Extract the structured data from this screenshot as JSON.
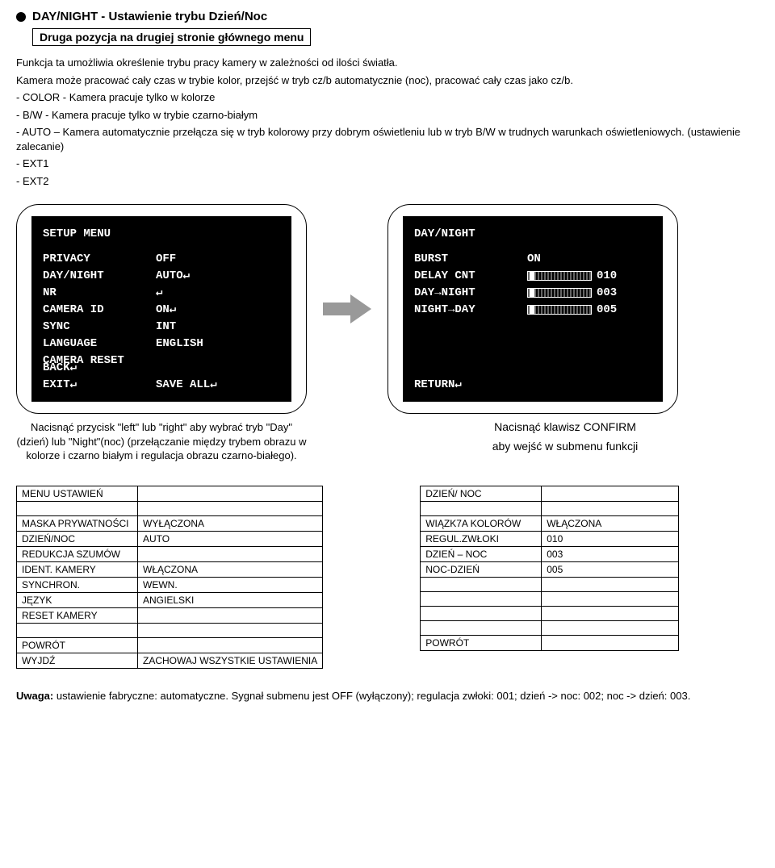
{
  "heading": "DAY/NIGHT - Ustawienie trybu Dzień/Noc",
  "subheading": "Druga pozycja na drugiej stronie głównego menu",
  "para1": "Funkcja ta umożliwia określenie trybu pracy kamery w zależności od ilości światła.",
  "para2": "Kamera może pracować cały czas w trybie kolor, przejść w tryb cz/b automatycznie (noc), pracować cały czas jako cz/b.",
  "opt_color": "- COLOR - Kamera pracuje tylko w kolorze",
  "opt_bw": "- B/W - Kamera pracuje tylko w trybie czarno-białym",
  "opt_auto_line1": "- AUTO – Kamera automatycznie przełącza się w tryb kolorowy przy dobrym oświetleniu lub w tryb B/W w trudnych warunkach oświetleniowych. (ustawienie zalecanie)",
  "opt_ext1": "- EXT1",
  "opt_ext2": "- EXT2",
  "lcd_left": {
    "title": "SETUP MENU",
    "rows": [
      {
        "l": "PRIVACY",
        "r": "OFF"
      },
      {
        "l": "DAY/NIGHT",
        "r": "AUTO↵"
      },
      {
        "l": "NR",
        "r": "↵"
      },
      {
        "l": "CAMERA ID",
        "r": "ON↵"
      },
      {
        "l": "SYNC",
        "r": "INT"
      },
      {
        "l": "LANGUAGE",
        "r": "ENGLISH"
      },
      {
        "l": "CAMERA RESET",
        "r": ""
      }
    ],
    "footer_l1": "BACK↵",
    "footer_l2": "EXIT↵",
    "footer_r": "SAVE ALL↵"
  },
  "lcd_right": {
    "title": "DAY/NIGHT",
    "rows": [
      {
        "l": "BURST",
        "r": "ON",
        "slider": false
      },
      {
        "l": "DELAY CNT",
        "r": "010",
        "slider": true
      },
      {
        "l": "DAY→NIGHT",
        "r": "003",
        "slider": true
      },
      {
        "l": "NIGHT→DAY",
        "r": "005",
        "slider": true
      }
    ],
    "footer": "RETURN↵"
  },
  "caption_left": "Nacisnąć przycisk \"left\" lub \"right\" aby wybrać tryb \"Day\" (dzień) lub \"Night\"(noc) (przełączanie między trybem obrazu w kolorze i czarno białym i regulacja obrazu czarno-białego).",
  "caption_right_1": "Nacisnąć klawisz CONFIRM",
  "caption_right_2": "aby wejść w submenu funkcji",
  "table_left": {
    "header": "MENU USTAWIEŃ",
    "rows": [
      {
        "a": "MASKA PRYWATNOŚCI",
        "b": "WYŁĄCZONA"
      },
      {
        "a": "DZIEŃ/NOC",
        "b": "AUTO"
      },
      {
        "a": "REDUKCJA SZUMÓW",
        "b": ""
      },
      {
        "a": "IDENT. KAMERY",
        "b": "WŁĄCZONA"
      },
      {
        "a": "SYNCHRON.",
        "b": "WEWN."
      },
      {
        "a": "JĘZYK",
        "b": "ANGIELSKI"
      },
      {
        "a": "RESET KAMERY",
        "b": ""
      }
    ],
    "footer": [
      {
        "a": "POWRÓT",
        "b": ""
      },
      {
        "a": "WYJDŹ",
        "b": "ZACHOWAJ WSZYSTKIE USTAWIENIA"
      }
    ]
  },
  "table_right": {
    "header": "DZIEŃ/ NOC",
    "rows": [
      {
        "a": "WIĄZK7A KOLORÓW",
        "b": "WŁĄCZONA"
      },
      {
        "a": "REGUL.ZWŁOKI",
        "b": "010"
      },
      {
        "a": "DZIEŃ – NOC",
        "b": "003"
      },
      {
        "a": "NOC-DZIEŃ",
        "b": "005"
      }
    ],
    "footer": [
      {
        "a": "POWRÓT",
        "b": ""
      }
    ]
  },
  "footer_note": "Uwaga: ustawienie fabryczne: automatyczne. Sygnał submenu jest OFF (wyłączony); regulacja zwłoki: 001; dzień -> noc: 002; noc -> dzień: 003."
}
